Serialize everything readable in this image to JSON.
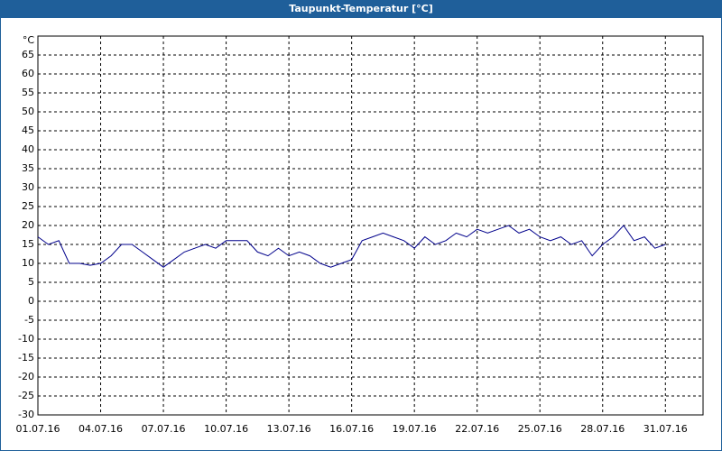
{
  "chart_data": {
    "type": "line",
    "title": "Taupunkt-Temperatur [°C]",
    "y_unit_label": "°C",
    "x": [
      0,
      0.5,
      1,
      1.5,
      2,
      2.5,
      3,
      3.5,
      4,
      4.5,
      5,
      5.5,
      6,
      6.5,
      7,
      7.5,
      8,
      8.5,
      9,
      9.5,
      10,
      10.5,
      11,
      11.5,
      12,
      12.5,
      13,
      13.5,
      14,
      14.5,
      15,
      15.5,
      16,
      16.5,
      17,
      17.5,
      18,
      18.5,
      19,
      19.5,
      20,
      20.5,
      21,
      21.5,
      22,
      22.5,
      23,
      23.5,
      24,
      24.5,
      25,
      25.5,
      26,
      26.5,
      27,
      27.5,
      28,
      28.5,
      29,
      29.5,
      30
    ],
    "series": [
      {
        "name": "Taupunkt-Temperatur",
        "color": "#00008b",
        "values": [
          17,
          15,
          16,
          10,
          10,
          9.5,
          10,
          12,
          15,
          15,
          13,
          11,
          9,
          11,
          13,
          14,
          15,
          14,
          16,
          16,
          16,
          13,
          12,
          14,
          12,
          13,
          12,
          10,
          9,
          10,
          11,
          16,
          17,
          18,
          17,
          16,
          14,
          17,
          15,
          16,
          18,
          17,
          19,
          18,
          19,
          20,
          18,
          19,
          17,
          16,
          17,
          15,
          16,
          12,
          15,
          17,
          20,
          16,
          17,
          14,
          15
        ]
      }
    ],
    "xlim": [
      0,
      31.8
    ],
    "xticks": [
      {
        "value": 0,
        "label": "01.07.16"
      },
      {
        "value": 3,
        "label": "04.07.16"
      },
      {
        "value": 6,
        "label": "07.07.16"
      },
      {
        "value": 9,
        "label": "10.07.16"
      },
      {
        "value": 12,
        "label": "13.07.16"
      },
      {
        "value": 15,
        "label": "16.07.16"
      },
      {
        "value": 18,
        "label": "19.07.16"
      },
      {
        "value": 21,
        "label": "22.07.16"
      },
      {
        "value": 24,
        "label": "25.07.16"
      },
      {
        "value": 27,
        "label": "28.07.16"
      },
      {
        "value": 30,
        "label": "31.07.16"
      }
    ],
    "ylim": [
      -30,
      70
    ],
    "yticks": [
      -30,
      -25,
      -20,
      -15,
      -10,
      -5,
      0,
      5,
      10,
      15,
      20,
      25,
      30,
      35,
      40,
      45,
      50,
      55,
      60,
      65
    ],
    "grid": true
  }
}
